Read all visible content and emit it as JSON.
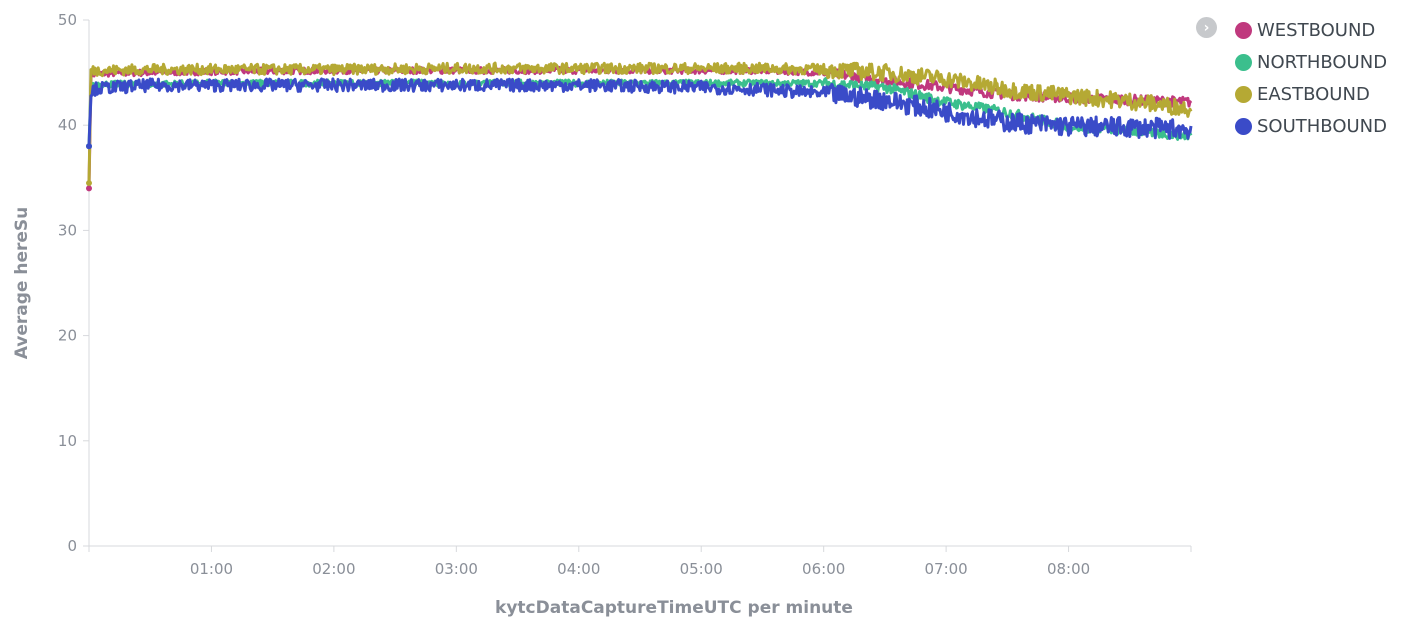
{
  "chart_data": {
    "type": "line",
    "title": "",
    "xlabel": "kytcDataCaptureTimeUTC per minute",
    "ylabel": "Average hereSu",
    "ylim": [
      0,
      50
    ],
    "xlim_minutes": [
      0,
      540
    ],
    "y_ticks": [
      "0",
      "10",
      "20",
      "30",
      "40",
      "50"
    ],
    "x_ticks": [
      {
        "minute": 60,
        "label": "01:00"
      },
      {
        "minute": 120,
        "label": "02:00"
      },
      {
        "minute": 180,
        "label": "03:00"
      },
      {
        "minute": 240,
        "label": "04:00"
      },
      {
        "minute": 300,
        "label": "05:00"
      },
      {
        "minute": 360,
        "label": "06:00"
      },
      {
        "minute": 420,
        "label": "07:00"
      },
      {
        "minute": 480,
        "label": "08:00"
      }
    ],
    "grid": false,
    "legend_position": "top-right",
    "series": [
      {
        "name": "WESTBOUND",
        "color": "#c0397e",
        "x": [
          "00:00",
          "00:01",
          "00:04",
          "00:30",
          "01:00",
          "02:00",
          "03:00",
          "04:00",
          "05:00",
          "05:30",
          "06:00",
          "06:30",
          "07:00",
          "07:30",
          "08:00",
          "08:30",
          "09:00"
        ],
        "y": [
          34.0,
          44.8,
          44.9,
          45.0,
          45.1,
          45.2,
          45.2,
          45.2,
          45.2,
          45.2,
          45.0,
          44.3,
          43.6,
          42.9,
          42.6,
          42.4,
          42.2
        ],
        "spread": 0.3
      },
      {
        "name": "NORTHBOUND",
        "color": "#3bbf8d",
        "x": [
          "00:00",
          "00:01",
          "00:04",
          "00:30",
          "01:00",
          "02:00",
          "03:00",
          "04:00",
          "05:00",
          "05:30",
          "06:00",
          "06:30",
          "07:00",
          "07:30",
          "08:00",
          "08:30",
          "09:00"
        ],
        "y": [
          38.0,
          43.8,
          43.9,
          43.9,
          44.0,
          44.0,
          44.0,
          44.0,
          44.0,
          44.0,
          44.0,
          43.6,
          42.2,
          41.2,
          39.9,
          39.5,
          39.0
        ],
        "spread": 0.3
      },
      {
        "name": "EASTBOUND",
        "color": "#b5a934",
        "x": [
          "00:00",
          "00:01",
          "00:04",
          "00:30",
          "01:00",
          "02:00",
          "03:00",
          "04:00",
          "05:00",
          "05:30",
          "06:00",
          "06:30",
          "07:00",
          "07:30",
          "08:00",
          "08:30",
          "09:00"
        ],
        "y": [
          34.5,
          45.2,
          45.2,
          45.3,
          45.3,
          45.3,
          45.4,
          45.4,
          45.4,
          45.4,
          45.3,
          45.0,
          44.4,
          43.4,
          42.8,
          42.3,
          41.6
        ],
        "spread": 0.5
      },
      {
        "name": "SOUTHBOUND",
        "color": "#3a4bc8",
        "x": [
          "00:00",
          "00:01",
          "00:04",
          "00:30",
          "01:00",
          "02:00",
          "03:00",
          "04:00",
          "05:00",
          "05:30",
          "06:00",
          "06:30",
          "07:00",
          "07:30",
          "08:00",
          "08:30",
          "09:00"
        ],
        "y": [
          38.0,
          43.3,
          43.5,
          43.8,
          43.8,
          43.8,
          43.8,
          43.8,
          43.6,
          43.4,
          43.0,
          42.4,
          41.3,
          40.3,
          39.9,
          39.8,
          39.6
        ],
        "spread": 0.6
      }
    ]
  },
  "legend": {
    "toggle_icon": "chevron-right-icon",
    "items": [
      {
        "label": "WESTBOUND",
        "color": "#c0397e"
      },
      {
        "label": "NORTHBOUND",
        "color": "#3bbf8d"
      },
      {
        "label": "EASTBOUND",
        "color": "#b5a934"
      },
      {
        "label": "SOUTHBOUND",
        "color": "#3a4bc8"
      }
    ]
  }
}
